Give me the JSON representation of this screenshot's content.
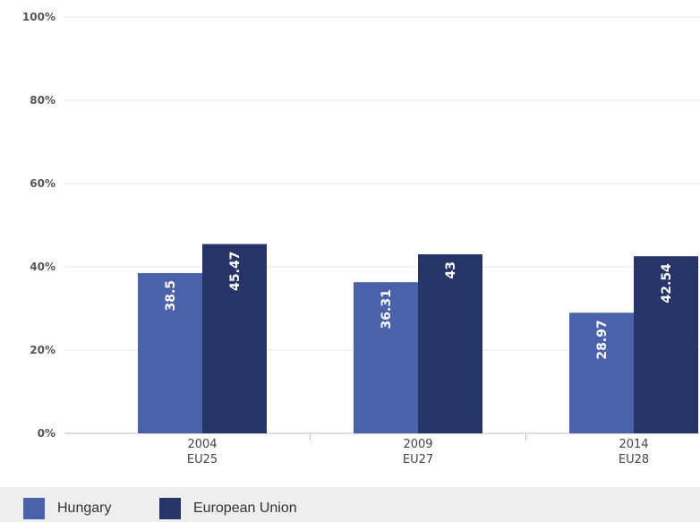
{
  "chart_data": {
    "type": "bar",
    "categories": [
      {
        "year": "2004",
        "group": "EU25"
      },
      {
        "year": "2009",
        "group": "EU27"
      },
      {
        "year": "2014",
        "group": "EU28"
      }
    ],
    "series": [
      {
        "name": "Hungary",
        "color": "#4a62aa",
        "values": [
          38.5,
          36.31,
          28.97
        ],
        "labels": [
          "38.5",
          "36.31",
          "28.97"
        ]
      },
      {
        "name": "European Union",
        "color": "#263468",
        "values": [
          45.47,
          43,
          42.54
        ],
        "labels": [
          "45.47",
          "43",
          "42.54"
        ]
      }
    ],
    "yticks": [
      "0%",
      "20%",
      "40%",
      "60%",
      "80%",
      "100%"
    ],
    "ylim": [
      0,
      100
    ],
    "grid": true,
    "legend_position": "bottom"
  }
}
